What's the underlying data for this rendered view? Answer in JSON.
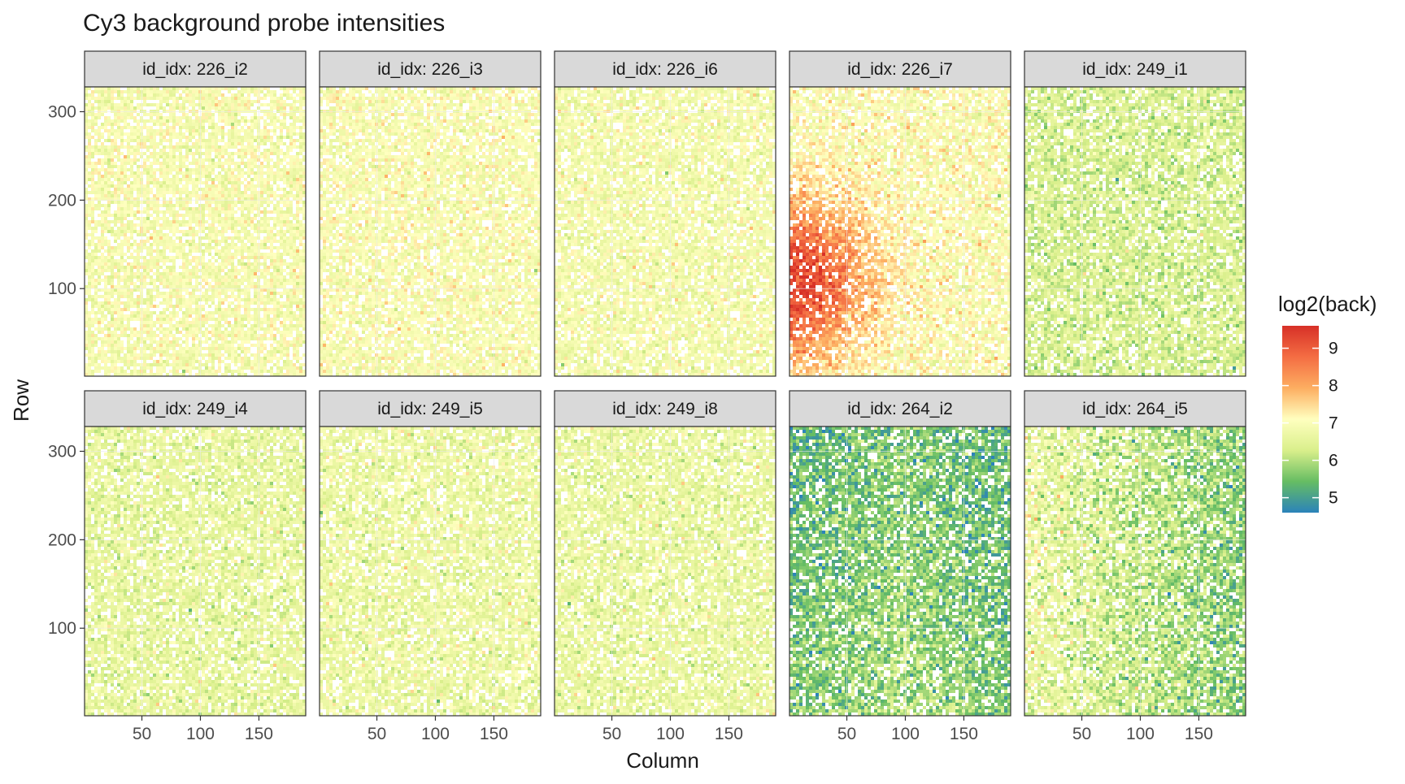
{
  "chart_data": {
    "type": "heatmap",
    "title": "Cy3 background probe intensities",
    "xlabel": "Column",
    "ylabel": "Row",
    "facet_variable": "id_idx",
    "facet_prefix": "id_idx: ",
    "facet_layout": {
      "rows": 2,
      "cols": 5
    },
    "xlim": [
      1,
      190
    ],
    "ylim": [
      1,
      328
    ],
    "x_ticks": [
      50,
      100,
      150
    ],
    "y_ticks": [
      100,
      200,
      300
    ],
    "grid": true,
    "panel_border": true,
    "legend": {
      "title": "log2(back)",
      "position": "right",
      "range": [
        4.6,
        9.6
      ],
      "ticks": [
        5,
        6,
        7,
        8,
        9
      ],
      "palette": "Spectral (reversed)",
      "colors": [
        "#2b83ba",
        "#66bd63",
        "#d9ef8b",
        "#ffffbf",
        "#fdae61",
        "#f46d43",
        "#d73027"
      ]
    },
    "panels": [
      {
        "id": "226_i2",
        "pattern": "uniform",
        "mean": 6.9,
        "sd": 0.25
      },
      {
        "id": "226_i3",
        "pattern": "uniform",
        "mean": 6.95,
        "sd": 0.25
      },
      {
        "id": "226_i6",
        "pattern": "uniform",
        "mean": 6.85,
        "sd": 0.25
      },
      {
        "id": "226_i7",
        "pattern": "hotspot-left",
        "mean": 7.0,
        "sd": 0.3,
        "hotspot_center": [
          1,
          110
        ],
        "hotspot_peak": 9.4
      },
      {
        "id": "249_i1",
        "pattern": "uniform",
        "mean": 6.35,
        "sd": 0.3
      },
      {
        "id": "249_i4",
        "pattern": "uniform",
        "mean": 6.6,
        "sd": 0.28
      },
      {
        "id": "249_i5",
        "pattern": "uniform",
        "mean": 6.7,
        "sd": 0.28
      },
      {
        "id": "249_i8",
        "pattern": "uniform",
        "mean": 6.65,
        "sd": 0.28
      },
      {
        "id": "264_i2",
        "pattern": "gradient-dark-edges",
        "mean": 6.0,
        "sd": 0.4
      },
      {
        "id": "264_i5",
        "pattern": "gradient-right-darker",
        "mean": 6.2,
        "sd": 0.4
      }
    ]
  }
}
